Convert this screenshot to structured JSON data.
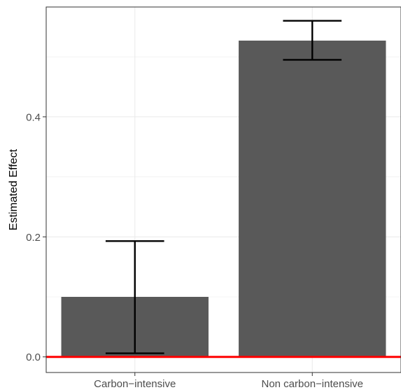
{
  "chart_data": {
    "type": "bar",
    "title": "",
    "xlabel": "",
    "ylabel": "Estimated Effect",
    "categories": [
      "Carbon−intensive",
      "Non carbon−intensive"
    ],
    "values": [
      0.1,
      0.527
    ],
    "error_low": [
      0.006,
      0.495
    ],
    "error_high": [
      0.193,
      0.56
    ],
    "ylim": [
      -0.026,
      0.583
    ],
    "y_ticks": [
      0.0,
      0.2,
      0.4
    ],
    "y_tick_labels": [
      "0.0",
      "0.2",
      "0.4"
    ],
    "reference_line": {
      "y": 0,
      "color": "#ff0000"
    },
    "grid": true,
    "legend": "none",
    "colors": {
      "bar": "#595959",
      "error_bar": "#000000",
      "grid": "#ebebeb",
      "panel_border": "#333333",
      "tick_label": "#4d4d4d"
    }
  }
}
